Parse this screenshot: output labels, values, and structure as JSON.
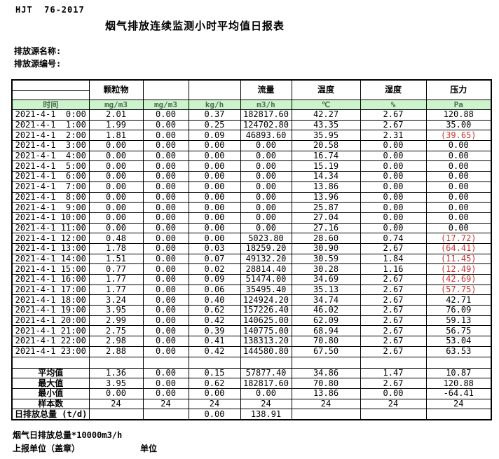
{
  "page": {
    "standard_label": "HJT  76-2017",
    "title": "烟气排放连续监测小时平均值日报表",
    "source_name_label": "排放源名称:",
    "source_code_label": "排放源编号:",
    "footer_note": "烟气日排放总量*10000m3/h",
    "report_unit_label": "上报单位（盖章）",
    "unit_label": "单位"
  },
  "colors": {
    "header_green": "#ccf3cc",
    "unit_text_green": "#4e6e51",
    "negative_red": "#cc3333"
  },
  "table": {
    "time_header": "时间",
    "group_headers": {
      "particulate": "颗粒物",
      "flow": "流量",
      "temperature": "温度",
      "humidity": "湿度",
      "pressure": "压力"
    },
    "units": [
      "mg/m3",
      "mg/m3",
      "kg/h",
      "m3/h",
      "℃",
      "%",
      "Pa"
    ],
    "rows": [
      {
        "time": "2021-4-1  0:00",
        "values": [
          "2.01",
          "0.00",
          "0.37",
          "182817.60",
          "42.27",
          "2.67",
          "120.88"
        ]
      },
      {
        "time": "2021-4-1  1:00",
        "values": [
          "1.99",
          "0.00",
          "0.25",
          "124702.80",
          "43.35",
          "2.67",
          "35.00"
        ]
      },
      {
        "time": "2021-4-1  2:00",
        "values": [
          "1.81",
          "0.00",
          "0.09",
          "46893.60",
          "35.95",
          "2.31",
          "(39.65)"
        ]
      },
      {
        "time": "2021-4-1  3:00",
        "values": [
          "0.00",
          "0.00",
          "0.00",
          "0.00",
          "20.58",
          "0.00",
          "0.00"
        ]
      },
      {
        "time": "2021-4-1  4:00",
        "values": [
          "0.00",
          "0.00",
          "0.00",
          "0.00",
          "16.74",
          "0.00",
          "0.00"
        ]
      },
      {
        "time": "2021-4-1  5:00",
        "values": [
          "0.00",
          "0.00",
          "0.00",
          "0.00",
          "15.19",
          "0.00",
          "0.00"
        ]
      },
      {
        "time": "2021-4-1  6:00",
        "values": [
          "0.00",
          "0.00",
          "0.00",
          "0.00",
          "14.34",
          "0.00",
          "0.00"
        ]
      },
      {
        "time": "2021-4-1  7:00",
        "values": [
          "0.00",
          "0.00",
          "0.00",
          "0.00",
          "13.86",
          "0.00",
          "0.00"
        ]
      },
      {
        "time": "2021-4-1  8:00",
        "values": [
          "0.00",
          "0.00",
          "0.00",
          "0.00",
          "13.96",
          "0.00",
          "0.00"
        ]
      },
      {
        "time": "2021-4-1  9:00",
        "values": [
          "0.00",
          "0.00",
          "0.00",
          "0.00",
          "25.87",
          "0.00",
          "0.00"
        ]
      },
      {
        "time": "2021-4-1 10:00",
        "values": [
          "0.00",
          "0.00",
          "0.00",
          "0.00",
          "27.04",
          "0.00",
          "0.00"
        ]
      },
      {
        "time": "2021-4-1 11:00",
        "values": [
          "0.00",
          "0.00",
          "0.00",
          "0.00",
          "27.16",
          "0.00",
          "0.00"
        ]
      },
      {
        "time": "2021-4-1 12:00",
        "values": [
          "0.48",
          "0.00",
          "0.00",
          "5023.80",
          "28.60",
          "0.74",
          "(17.72)"
        ]
      },
      {
        "time": "2021-4-1 13:00",
        "values": [
          "1.78",
          "0.00",
          "0.03",
          "18259.20",
          "30.90",
          "2.67",
          "(64.41)"
        ]
      },
      {
        "time": "2021-4-1 14:00",
        "values": [
          "1.51",
          "0.00",
          "0.07",
          "49132.20",
          "30.59",
          "1.84",
          "(11.45)"
        ]
      },
      {
        "time": "2021-4-1 15:00",
        "values": [
          "0.77",
          "0.00",
          "0.02",
          "28814.40",
          "30.28",
          "1.16",
          "(12.49)"
        ]
      },
      {
        "time": "2021-4-1 16:00",
        "values": [
          "1.77",
          "0.00",
          "0.09",
          "51474.00",
          "34.69",
          "2.67",
          "(42.69)"
        ]
      },
      {
        "time": "2021-4-1 17:00",
        "values": [
          "1.77",
          "0.00",
          "0.06",
          "35495.40",
          "35.13",
          "2.67",
          "(57.75)"
        ]
      },
      {
        "time": "2021-4-1 18:00",
        "values": [
          "3.24",
          "0.00",
          "0.40",
          "124924.20",
          "34.74",
          "2.67",
          "42.71"
        ]
      },
      {
        "time": "2021-4-1 19:00",
        "values": [
          "3.95",
          "0.00",
          "0.62",
          "157226.40",
          "46.02",
          "2.67",
          "76.09"
        ]
      },
      {
        "time": "2021-4-1 20:00",
        "values": [
          "2.99",
          "0.00",
          "0.42",
          "140625.00",
          "62.09",
          "2.67",
          "59.13"
        ]
      },
      {
        "time": "2021-4-1 21:00",
        "values": [
          "2.75",
          "0.00",
          "0.39",
          "140775.00",
          "68.94",
          "2.67",
          "56.75"
        ]
      },
      {
        "time": "2021-4-1 22:00",
        "values": [
          "2.98",
          "0.00",
          "0.41",
          "138313.20",
          "70.80",
          "2.67",
          "53.04"
        ]
      },
      {
        "time": "2021-4-1 23:00",
        "values": [
          "2.88",
          "0.00",
          "0.42",
          "144580.80",
          "67.50",
          "2.67",
          "63.53"
        ]
      }
    ],
    "summary": [
      {
        "label": "平均值",
        "values": [
          "1.36",
          "0.00",
          "0.15",
          "57877.40",
          "34.86",
          "1.47",
          "10.87"
        ]
      },
      {
        "label": "最大值",
        "values": [
          "3.95",
          "0.00",
          "0.62",
          "182817.60",
          "70.80",
          "2.67",
          "120.88"
        ]
      },
      {
        "label": "最小值",
        "values": [
          "0.00",
          "0.00",
          "0.00",
          "0.00",
          "13.86",
          "0.00",
          "-64.41"
        ]
      },
      {
        "label": "样本数",
        "values": [
          "24",
          "24",
          "24",
          "24",
          "24",
          "24",
          "24"
        ]
      },
      {
        "label": "日排放总量 (t/d)",
        "values": [
          "",
          "",
          "0.00",
          "138.91",
          "",
          "",
          ""
        ]
      }
    ]
  }
}
